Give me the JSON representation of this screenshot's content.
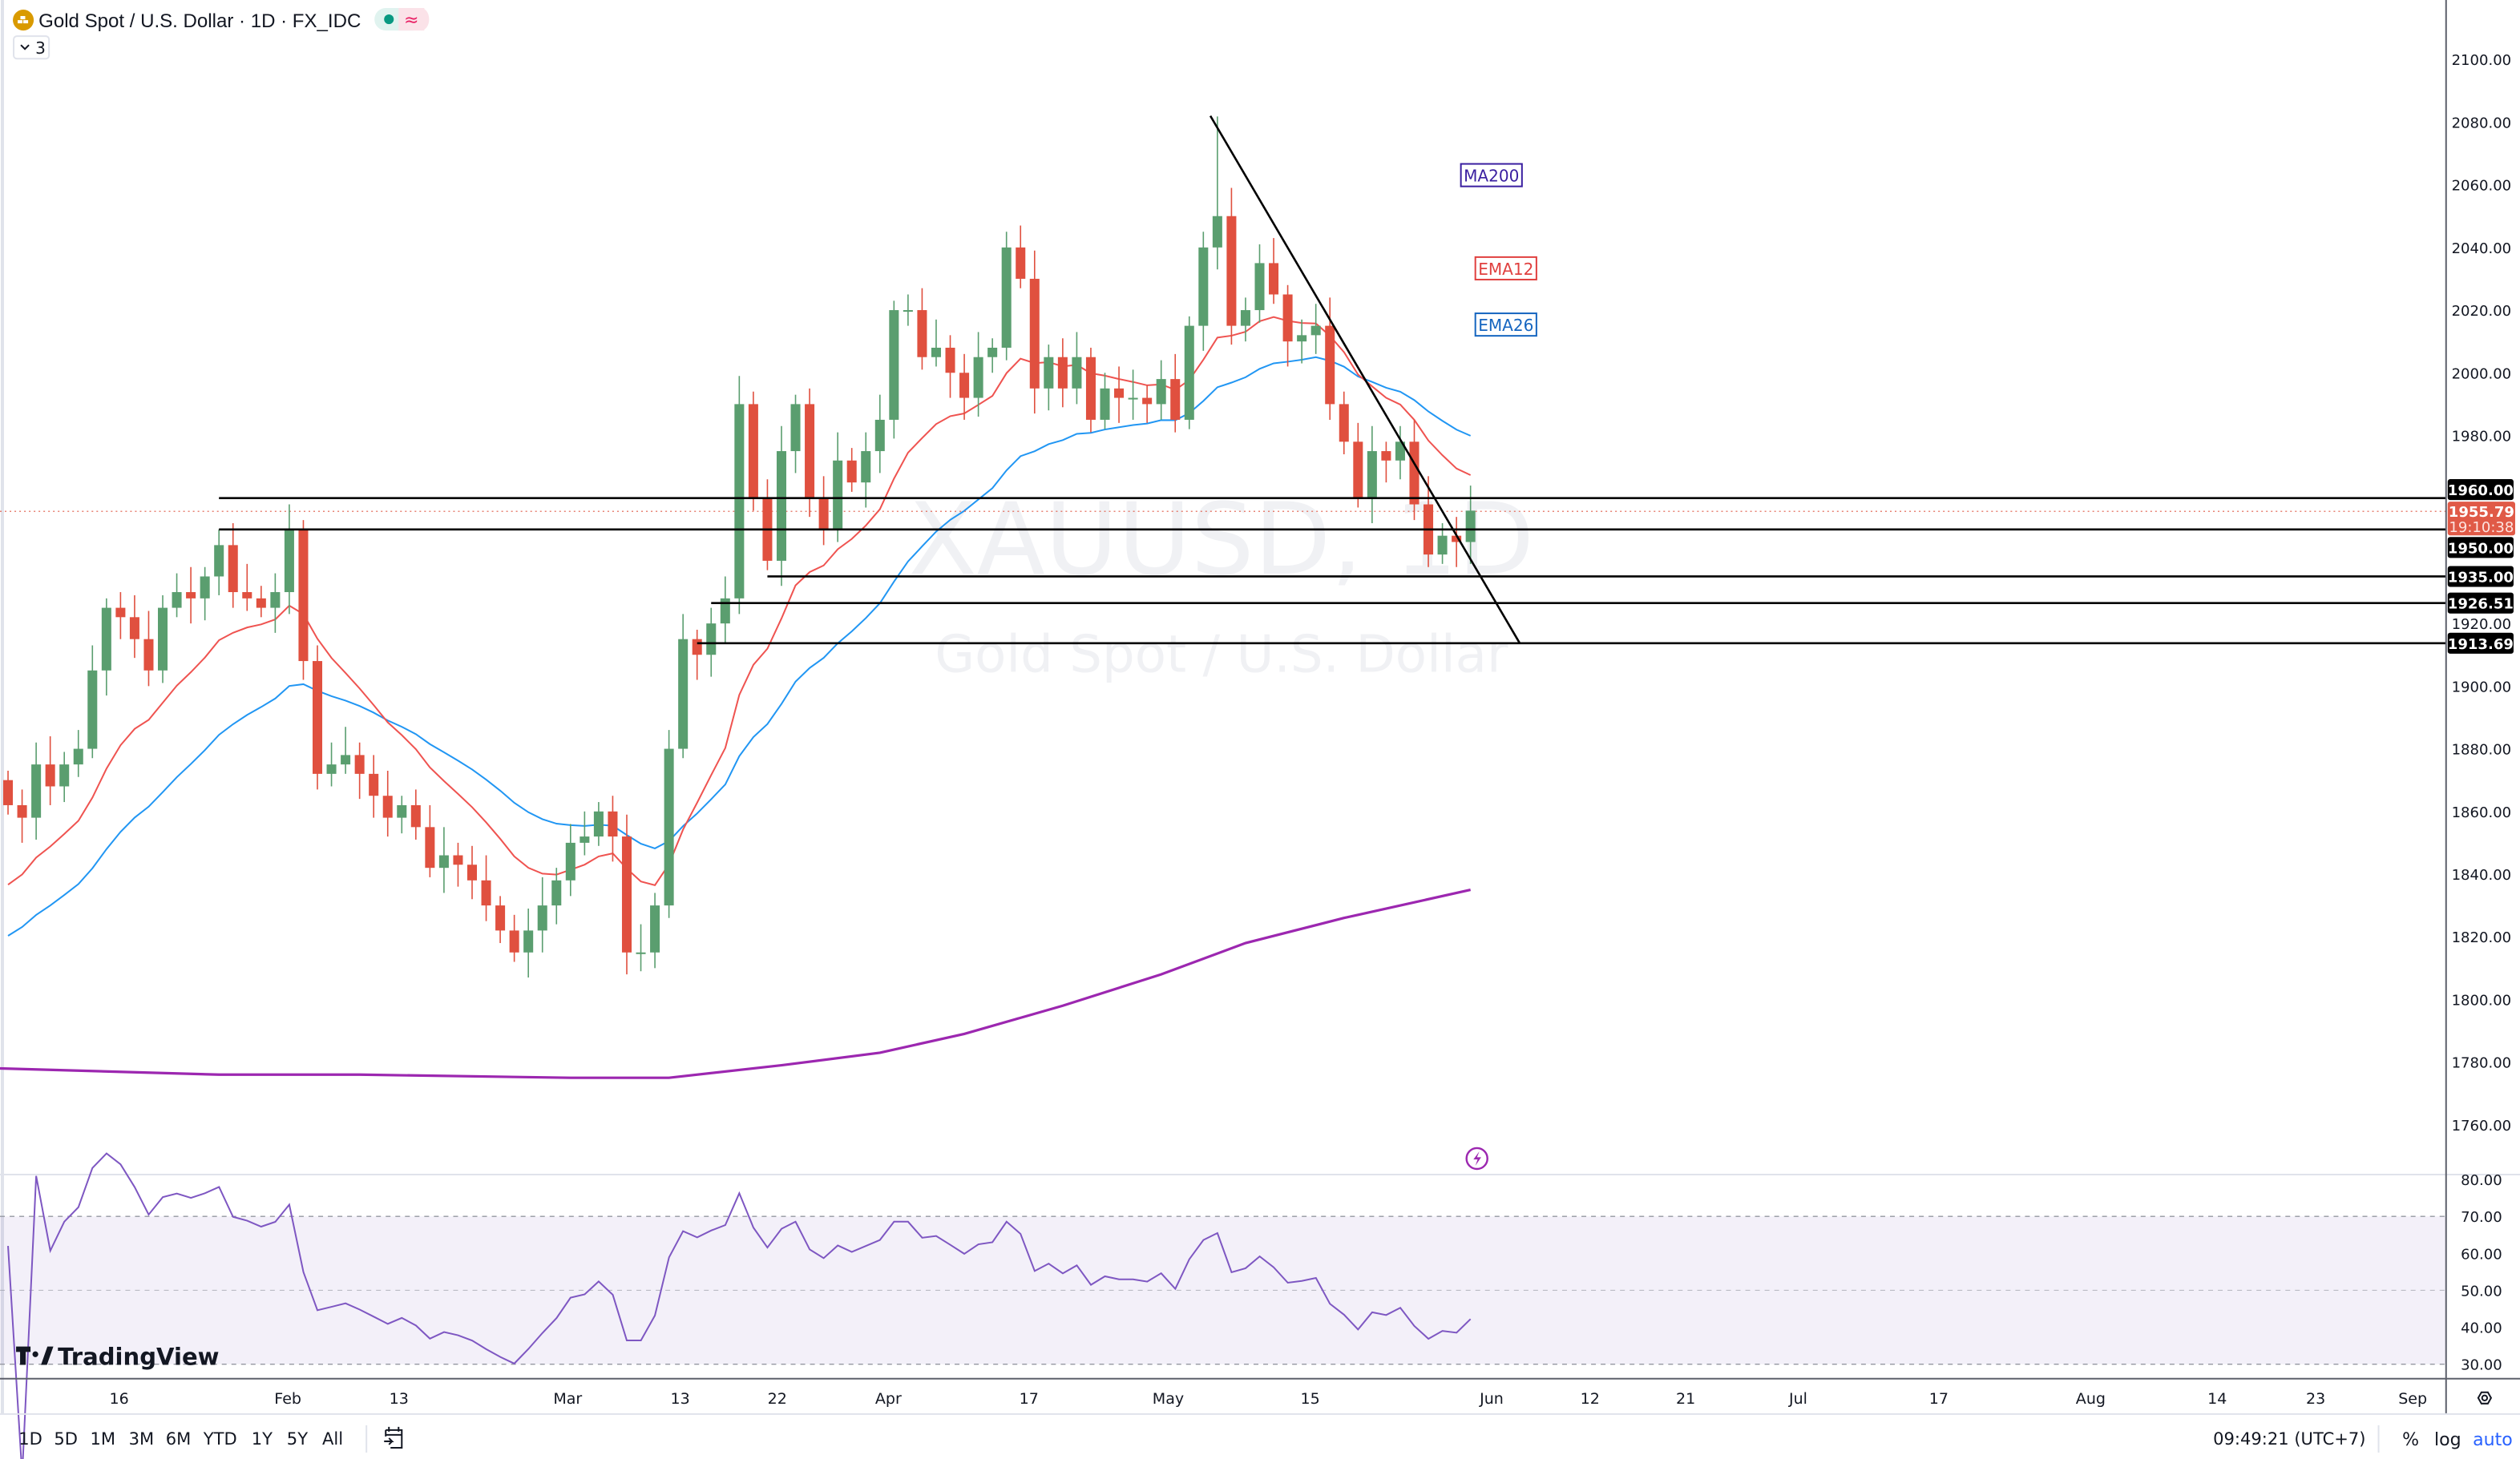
{
  "header": {
    "symbol_title": "Gold Spot / U.S. Dollar · 1D · FX_IDC",
    "indicator_toggle_count": "3",
    "market_status_icon": "green-dot-icon",
    "delayed_icon": "approx-icon"
  },
  "watermark": {
    "line1": "XAUUSD, 1D",
    "line2": "Gold Spot / U.S. Dollar"
  },
  "colors": {
    "up": "#5a9e6f",
    "down": "#e0503f",
    "ema12": "#ef5350",
    "ema26": "#2196f3",
    "ma200": "#9c27b0",
    "rsi": "#7e57c2",
    "current_price": "#e05a47",
    "accent": "#2962ff"
  },
  "legend_labels": {
    "ma200": "MA200",
    "ema12": "EMA12",
    "ema26": "EMA26"
  },
  "price_axis": {
    "ticks": [
      "2100.00",
      "2080.00",
      "2060.00",
      "2040.00",
      "2020.00",
      "2000.00",
      "1980.00",
      "1920.00",
      "1900.00",
      "1880.00",
      "1860.00",
      "1840.00",
      "1820.00",
      "1800.00",
      "1780.00",
      "1760.00"
    ],
    "tick_values": [
      2100,
      2080,
      2060,
      2040,
      2020,
      2000,
      1980,
      1920,
      1900,
      1880,
      1860,
      1840,
      1820,
      1800,
      1780,
      1760
    ],
    "current_price": "1955.79",
    "current_price_value": 1955.79,
    "countdown": "19:10:38"
  },
  "horizontal_levels": [
    {
      "label": "1960.00",
      "value": 1960.0,
      "start_index": 15
    },
    {
      "label": "1950.00",
      "value": 1950.0,
      "start_index": 15
    },
    {
      "label": "1935.00",
      "value": 1935.0,
      "start_index": 54
    },
    {
      "label": "1926.51",
      "value": 1926.51,
      "start_index": 50
    },
    {
      "label": "1913.69",
      "value": 1913.69,
      "start_index": 49
    }
  ],
  "trendline": {
    "from": [
      85.5,
      2082
    ],
    "to": [
      107.5,
      1913.69
    ]
  },
  "rsi_axis": {
    "ticks": [
      "80.00",
      "70.00",
      "60.00",
      "50.00",
      "40.00",
      "30.00"
    ],
    "tick_values": [
      80,
      70,
      60,
      50,
      40,
      30
    ]
  },
  "time_axis": [
    {
      "label": "16",
      "index": 7.9
    },
    {
      "label": "Feb",
      "index": 19.9
    },
    {
      "label": "13",
      "index": 27.8
    },
    {
      "label": "Mar",
      "index": 39.8
    },
    {
      "label": "13",
      "index": 47.8
    },
    {
      "label": "22",
      "index": 54.7
    },
    {
      "label": "Apr",
      "index": 62.6
    },
    {
      "label": "17",
      "index": 72.6
    },
    {
      "label": "May",
      "index": 82.5
    },
    {
      "label": "15",
      "index": 92.6
    },
    {
      "label": "Jun",
      "index": 105.5
    },
    {
      "label": "12",
      "index": 112.5
    },
    {
      "label": "21",
      "index": 119.3
    },
    {
      "label": "Jul",
      "index": 127.3
    },
    {
      "label": "17",
      "index": 137.3
    },
    {
      "label": "Aug",
      "index": 148.1
    },
    {
      "label": "14",
      "index": 157.1
    },
    {
      "label": "23",
      "index": 164.1
    },
    {
      "label": "Sep",
      "index": 171
    }
  ],
  "chart_data": {
    "type": "candlestick",
    "first_open": 1870,
    "closes": [
      1862,
      1858,
      1875,
      1868,
      1875,
      1880,
      1905,
      1925,
      1922,
      1915,
      1905,
      1925,
      1930,
      1928,
      1935,
      1945,
      1930,
      1928,
      1925,
      1930,
      1950,
      1908,
      1872,
      1875,
      1878,
      1872,
      1865,
      1858,
      1862,
      1855,
      1842,
      1846,
      1843,
      1838,
      1830,
      1822,
      1815,
      1822,
      1830,
      1838,
      1850,
      1852,
      1860,
      1852,
      1815,
      1815,
      1830,
      1880,
      1915,
      1910,
      1920,
      1928,
      1990,
      1960,
      1940,
      1975,
      1990,
      1960,
      1950,
      1972,
      1965,
      1975,
      1985,
      2020,
      2020,
      2005,
      2008,
      2000,
      1992,
      2005,
      2008,
      2040,
      2030,
      1995,
      2005,
      1995,
      2005,
      1985,
      1995,
      1992,
      1992,
      1990,
      1998,
      1985,
      2015,
      2040,
      2050,
      2015,
      2020,
      2035,
      2025,
      2010,
      2012,
      2015,
      1990,
      1978,
      1960,
      1975,
      1972,
      1978,
      1958,
      1942,
      1948,
      1946,
      1956
    ],
    "extreme_high": {
      "index": 86,
      "value": 2081.8
    },
    "ma200": [
      [
        0,
        1778
      ],
      [
        15,
        1776
      ],
      [
        25,
        1776
      ],
      [
        40,
        1775
      ],
      [
        47,
        1775
      ],
      [
        55,
        1779
      ],
      [
        62,
        1783
      ],
      [
        68,
        1789
      ],
      [
        75,
        1798
      ],
      [
        82,
        1808
      ],
      [
        88,
        1818
      ],
      [
        95,
        1826
      ],
      [
        104,
        1835
      ]
    ],
    "indicators": [
      "MA200",
      "EMA12",
      "EMA26",
      "RSI"
    ]
  },
  "branding": "TradingView",
  "bottom_toolbar": {
    "ranges": [
      "1D",
      "5D",
      "1M",
      "3M",
      "6M",
      "YTD",
      "1Y",
      "5Y",
      "All"
    ],
    "time": "09:49:21 (UTC+7)",
    "percent": "%",
    "log": "log",
    "auto": "auto"
  }
}
